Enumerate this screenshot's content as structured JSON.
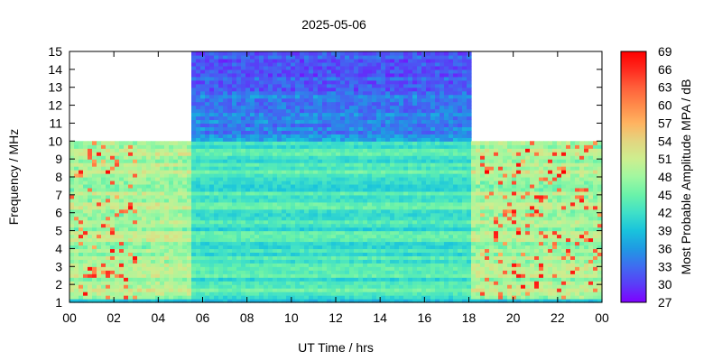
{
  "chart_data": {
    "type": "heatmap",
    "title": "2025-05-06",
    "xlabel": "UT Time / hrs",
    "ylabel": "Frequency / MHz",
    "x_ticks": [
      "00",
      "02",
      "04",
      "06",
      "08",
      "10",
      "12",
      "14",
      "16",
      "18",
      "20",
      "22",
      "00"
    ],
    "x_range_hours": [
      0,
      24
    ],
    "y_ticks": [
      1,
      2,
      3,
      4,
      5,
      6,
      7,
      8,
      9,
      10,
      11,
      12,
      13,
      14,
      15
    ],
    "ylim": [
      1,
      15
    ],
    "colorbar": {
      "label": "Most Probable Amplitude MPA / dB",
      "ticks": [
        27,
        30,
        33,
        36,
        39,
        42,
        45,
        48,
        51,
        54,
        57,
        60,
        63,
        66,
        69
      ],
      "range": [
        27,
        69
      ],
      "colors": [
        "#7f00ff",
        "#5a3df7",
        "#3f6cf0",
        "#1f9ae3",
        "#19c3dc",
        "#3fe0c8",
        "#6af2a9",
        "#a0f7a0",
        "#cdee8f",
        "#e3d580",
        "#ffb360",
        "#ff8a4a",
        "#ff5f3a",
        "#ff2a1e",
        "#ff0000"
      ]
    },
    "coverage": {
      "full_band_hours": [
        5.5,
        18
      ],
      "full_band_mhz": [
        1,
        15
      ],
      "reduced_band_mhz": [
        1,
        10
      ]
    }
  }
}
